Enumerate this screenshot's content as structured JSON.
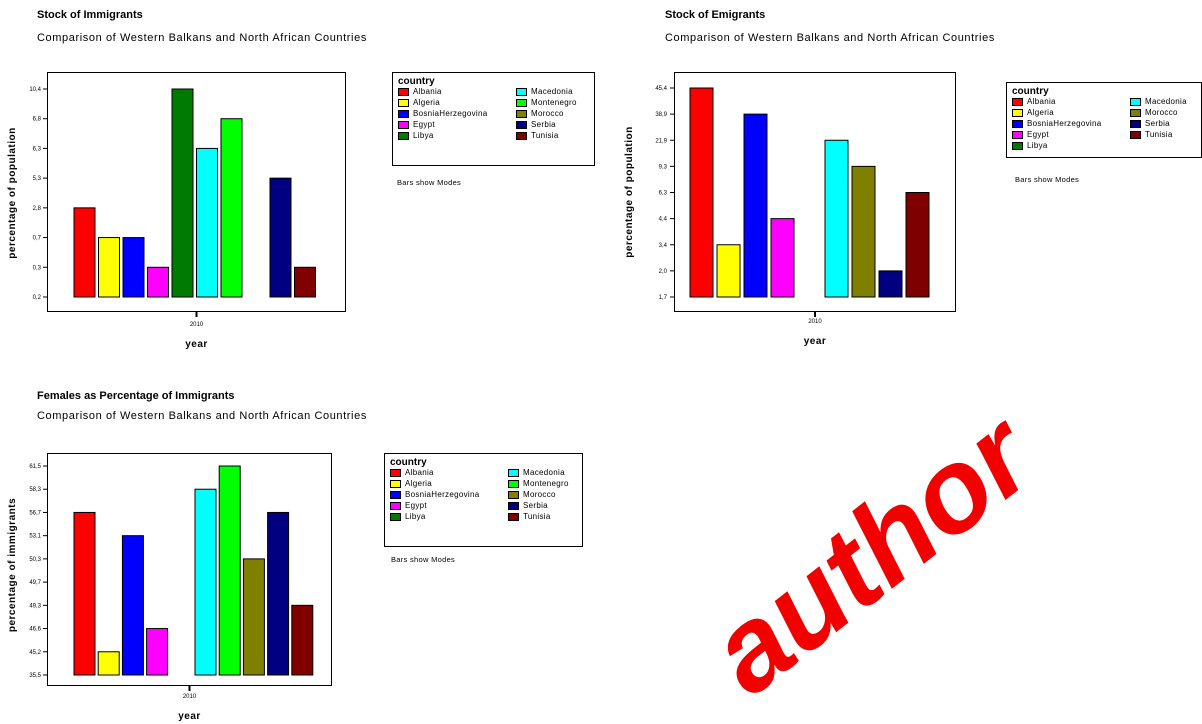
{
  "watermark_text": "author",
  "country_colors": {
    "Albania": "#ff0000",
    "Algeria": "#ffff00",
    "BosniaHerzegovina": "#0000ff",
    "Egypt": "#ff00ff",
    "Libya": "#007a00",
    "Macedonia": "#00ffff",
    "Montenegro": "#00ff00",
    "Morocco": "#808000",
    "Serbia": "#000080",
    "Tunisia": "#800000"
  },
  "chart_data": [
    {
      "type": "bar",
      "title": "Stock of Immigrants",
      "subtitle": "Comparison of Western Balkans and North African Countries",
      "xlabel": "year",
      "ylabel": "percentage of population",
      "x_tick": "2010",
      "y_ticks": [
        "0,2",
        "0,3",
        "0,7",
        "2,8",
        "5,3",
        "6,3",
        "6,8",
        "10,4"
      ],
      "legend_title": "country",
      "legend": [
        {
          "name": "Albania"
        },
        {
          "name": "Macedonia"
        },
        {
          "name": "Algeria"
        },
        {
          "name": "Montenegro"
        },
        {
          "name": "BosniaHerzegovina"
        },
        {
          "name": "Morocco"
        },
        {
          "name": "Egypt"
        },
        {
          "name": "Serbia"
        },
        {
          "name": "Libya"
        },
        {
          "name": "Tunisia"
        }
      ],
      "note": "Bars show Modes",
      "bars": [
        {
          "country": "Albania",
          "value": 2.8
        },
        {
          "country": "Algeria",
          "value": 0.7
        },
        {
          "country": "BosniaHerzegovina",
          "value": 0.7
        },
        {
          "country": "Egypt",
          "value": 0.3
        },
        {
          "country": "Libya",
          "value": 10.4
        },
        {
          "country": "Macedonia",
          "value": 6.3
        },
        {
          "country": "Montenegro",
          "value": 6.8
        },
        {
          "country": "Morocco",
          "value": null
        },
        {
          "country": "Serbia",
          "value": 5.3
        },
        {
          "country": "Tunisia",
          "value": 0.3
        }
      ]
    },
    {
      "type": "bar",
      "title": "Stock of Emigrants",
      "subtitle": "Comparison of Western Balkans and North African Countries",
      "xlabel": "year",
      "ylabel": "percentage of population",
      "x_tick": "2010",
      "y_ticks": [
        "1,7",
        "2,0",
        "3,4",
        "4,4",
        "6,3",
        "9,3",
        "21,9",
        "38,9",
        "45,4"
      ],
      "legend_title": "country",
      "legend": [
        {
          "name": "Albania"
        },
        {
          "name": "Macedonia"
        },
        {
          "name": "Algeria"
        },
        {
          "name": "Morocco"
        },
        {
          "name": "BosniaHerzegovina"
        },
        {
          "name": "Serbia"
        },
        {
          "name": "Egypt"
        },
        {
          "name": "Tunisia"
        },
        {
          "name": "Libya"
        }
      ],
      "note": "Bars show Modes",
      "bars": [
        {
          "country": "Albania",
          "value": 45.4
        },
        {
          "country": "Algeria",
          "value": 3.4
        },
        {
          "country": "BosniaHerzegovina",
          "value": 38.9
        },
        {
          "country": "Egypt",
          "value": 4.4
        },
        {
          "country": "Libya",
          "value": null
        },
        {
          "country": "Macedonia",
          "value": 21.9
        },
        {
          "country": "Morocco",
          "value": 9.3
        },
        {
          "country": "Serbia",
          "value": 2.0
        },
        {
          "country": "Tunisia",
          "value": 6.3
        }
      ]
    },
    {
      "type": "bar",
      "title": "Females as Percentage of Immigrants",
      "subtitle": "Comparison of Western Balkans and North African Countries",
      "xlabel": "year",
      "ylabel": "percentage of immigrants",
      "x_tick": "2010",
      "y_ticks": [
        "35,5",
        "45,2",
        "46,6",
        "49,3",
        "49,7",
        "50,3",
        "53,1",
        "56,7",
        "58,3",
        "61,5"
      ],
      "legend_title": "country",
      "legend": [
        {
          "name": "Albania"
        },
        {
          "name": "Macedonia"
        },
        {
          "name": "Algeria"
        },
        {
          "name": "Montenegro"
        },
        {
          "name": "BosniaHerzegovina"
        },
        {
          "name": "Morocco"
        },
        {
          "name": "Egypt"
        },
        {
          "name": "Serbia"
        },
        {
          "name": "Libya"
        },
        {
          "name": "Tunisia"
        }
      ],
      "note": "Bars show Modes",
      "bars": [
        {
          "country": "Albania",
          "value": 56.7
        },
        {
          "country": "Algeria",
          "value": 45.2
        },
        {
          "country": "BosniaHerzegovina",
          "value": 53.1
        },
        {
          "country": "Egypt",
          "value": 46.6
        },
        {
          "country": "Libya",
          "value": null
        },
        {
          "country": "Macedonia",
          "value": 58.3
        },
        {
          "country": "Montenegro",
          "value": 61.5
        },
        {
          "country": "Morocco",
          "value": 50.3
        },
        {
          "country": "Serbia",
          "value": 56.7
        },
        {
          "country": "Tunisia",
          "value": 49.3
        }
      ]
    }
  ]
}
